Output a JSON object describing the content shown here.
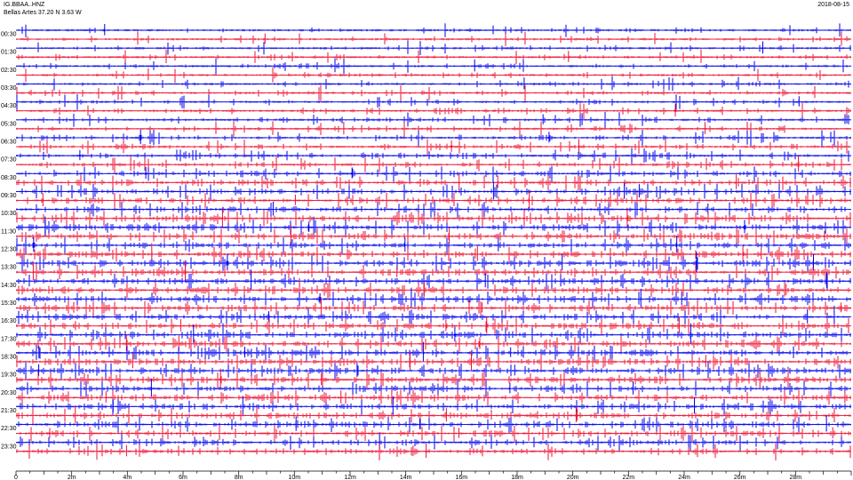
{
  "header": {
    "station": "IG.BBAA..HNZ",
    "location": "Bellas Artes  37.20 N 3.63 W",
    "date": "2018-08-15"
  },
  "chart_data": {
    "type": "line",
    "title": "IG.BBAA..HNZ",
    "subtitle": "Bellas Artes  37.20 N 3.63 W",
    "date": "2018-08-15",
    "row_count": 48,
    "row_minutes": 30,
    "hour_labels": [
      "00:30",
      "01:30",
      "02:30",
      "03:30",
      "04:30",
      "05:30",
      "06:30",
      "07:30",
      "08:30",
      "09:30",
      "10:30",
      "11:30",
      "12:30",
      "13:30",
      "14:30",
      "15:30",
      "16:30",
      "17:30",
      "18:30",
      "19:30",
      "20:30",
      "21:30",
      "22:30",
      "23:30"
    ],
    "x_ticks": [
      "0",
      "2m",
      "4m",
      "6m",
      "8m",
      "10m",
      "12m",
      "14m",
      "16m",
      "18m",
      "20m",
      "22m",
      "24m",
      "26m",
      "28m"
    ],
    "xlim": [
      0,
      30
    ],
    "series_colors": [
      "#0000ee",
      "#ee1133"
    ],
    "grid": false,
    "activity_by_row": [
      0.18,
      0.18,
      0.2,
      0.2,
      0.22,
      0.22,
      0.24,
      0.26,
      0.26,
      0.28,
      0.3,
      0.32,
      0.36,
      0.4,
      0.44,
      0.48,
      0.52,
      0.56,
      0.6,
      0.62,
      0.66,
      0.7,
      0.72,
      0.74,
      0.76,
      0.78,
      0.78,
      0.8,
      0.8,
      0.8,
      0.8,
      0.78,
      0.78,
      0.76,
      0.78,
      0.78,
      0.8,
      0.8,
      0.8,
      0.78,
      0.76,
      0.74,
      0.72,
      0.7,
      0.68,
      0.64,
      0.6,
      0.56
    ]
  }
}
